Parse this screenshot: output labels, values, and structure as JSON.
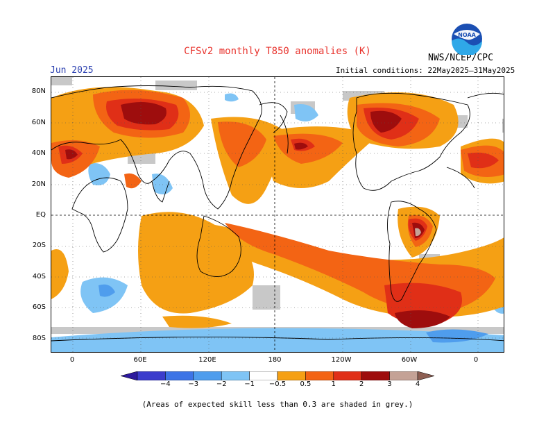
{
  "title": "CFSv2 monthly T850 anomalies (K)",
  "month": "Jun 2025",
  "initial_conditions": "Initial conditions: 22May2025–31May2025",
  "agency": "NWS/NCEP/CPC",
  "logo_text": "NOAA",
  "lat_labels": [
    "80N",
    "60N",
    "40N",
    "20N",
    "EQ",
    "20S",
    "40S",
    "60S",
    "80S"
  ],
  "lon_labels": [
    "0",
    "60E",
    "120E",
    "180",
    "120W",
    "60W",
    "0"
  ],
  "colorbar": {
    "labels": [
      "−4",
      "−3",
      "−2",
      "−1",
      "−0.5",
      "0.5",
      "1",
      "2",
      "3",
      "4"
    ],
    "colors": [
      "#2d1a9e",
      "#3b3ccc",
      "#3d74e6",
      "#4f9ded",
      "#7fc4f5",
      "#ffffff",
      "#f5a014",
      "#f36414",
      "#e02f17",
      "#9e0d0d",
      "#c4a296",
      "#8c5e52"
    ]
  },
  "colors": {
    "grey": "#c8c8c8",
    "coast": "#000000"
  },
  "footnote": "(Areas of expected skill less than 0.3 are shaded in grey.)"
}
